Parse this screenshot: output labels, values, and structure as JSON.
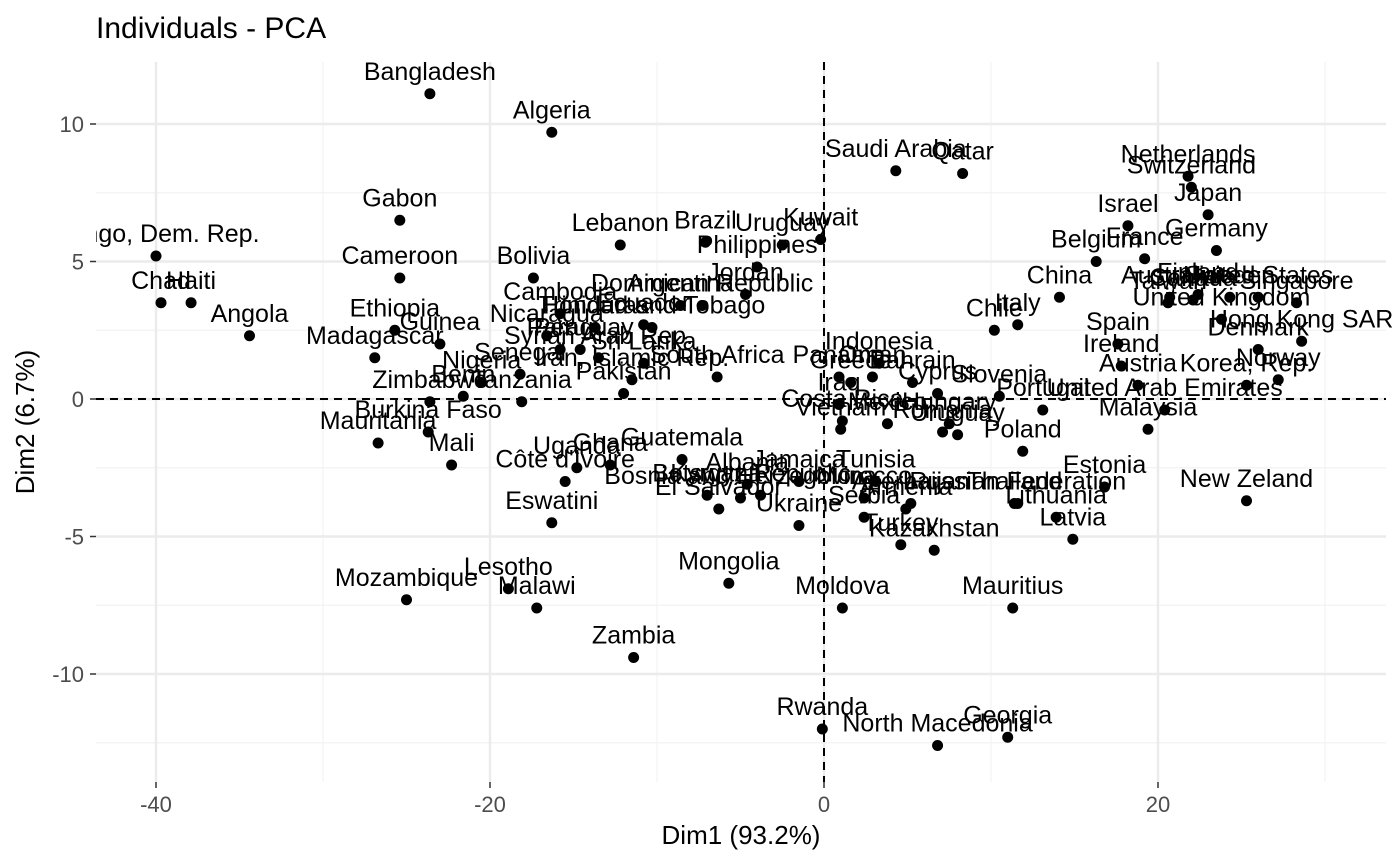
{
  "chart_data": {
    "type": "scatter",
    "title": "Individuals - PCA",
    "xlabel": "Dim1 (93.2%)",
    "ylabel": "Dim2 (6.7%)",
    "xlim": [
      -40,
      30
    ],
    "ylim": [
      -12.5,
      12
    ],
    "xticks": [
      -40,
      -20,
      0,
      20
    ],
    "yticks": [
      -10,
      -5,
      0,
      5,
      10
    ],
    "grid": true,
    "reference_lines": {
      "x": 0,
      "y": 0,
      "style": "dashed"
    },
    "points": [
      {
        "label": "Bangladesh",
        "x": -23.6,
        "y": 11.1
      },
      {
        "label": "Algeria",
        "x": -16.3,
        "y": 9.7
      },
      {
        "label": "Saudi Arabia",
        "x": 4.3,
        "y": 8.3
      },
      {
        "label": "Qatar",
        "x": 8.3,
        "y": 8.2
      },
      {
        "label": "Netherlands",
        "x": 21.8,
        "y": 8.1
      },
      {
        "label": "Switzerland",
        "x": 22.0,
        "y": 7.7
      },
      {
        "label": "Japan",
        "x": 23.0,
        "y": 6.7
      },
      {
        "label": "Israel",
        "x": 18.2,
        "y": 6.3
      },
      {
        "label": "Germany",
        "x": 23.5,
        "y": 5.4
      },
      {
        "label": "Gabon",
        "x": -25.4,
        "y": 6.5
      },
      {
        "label": "Lebanon",
        "x": -12.2,
        "y": 5.6
      },
      {
        "label": "Brazil",
        "x": -7.1,
        "y": 5.7
      },
      {
        "label": "Kuwait",
        "x": -0.2,
        "y": 5.8
      },
      {
        "label": "Uruguay",
        "x": -2.5,
        "y": 5.6
      },
      {
        "label": "Philippines",
        "x": -4.0,
        "y": 4.8
      },
      {
        "label": "Belgium",
        "x": 16.3,
        "y": 5.0
      },
      {
        "label": "France",
        "x": 19.2,
        "y": 5.1
      },
      {
        "label": "Congo, Dem. Rep.",
        "x": -40.0,
        "y": 5.2
      },
      {
        "label": "Cameroon",
        "x": -25.4,
        "y": 4.4
      },
      {
        "label": "Bolivia",
        "x": -17.4,
        "y": 4.4
      },
      {
        "label": "Jordan",
        "x": -4.7,
        "y": 3.8
      },
      {
        "label": "Dominican Republic",
        "x": -7.3,
        "y": 3.4
      },
      {
        "label": "Argentina",
        "x": -8.6,
        "y": 3.4
      },
      {
        "label": "China",
        "x": 14.1,
        "y": 3.7
      },
      {
        "label": "Australia",
        "x": 20.7,
        "y": 3.7
      },
      {
        "label": "Finland",
        "x": 22.4,
        "y": 3.8
      },
      {
        "label": "Canada",
        "x": 22.1,
        "y": 3.6
      },
      {
        "label": "United States",
        "x": 26.0,
        "y": 3.7
      },
      {
        "label": "Taiwan",
        "x": 20.6,
        "y": 3.5
      },
      {
        "label": "Sweden",
        "x": 24.3,
        "y": 3.7
      },
      {
        "label": "Singapore",
        "x": 28.3,
        "y": 3.5
      },
      {
        "label": "Chad",
        "x": -39.7,
        "y": 3.5
      },
      {
        "label": "Haiti",
        "x": -37.9,
        "y": 3.5
      },
      {
        "label": "Angola",
        "x": -34.4,
        "y": 2.3
      },
      {
        "label": "Cambodia",
        "x": -15.8,
        "y": 3.1
      },
      {
        "label": "Ecuador",
        "x": -10.8,
        "y": 2.7
      },
      {
        "label": "Guinea",
        "x": -23.0,
        "y": 2.0
      },
      {
        "label": "Nicaragua",
        "x": -16.6,
        "y": 2.3
      },
      {
        "label": "Honduras",
        "x": -13.7,
        "y": 2.6
      },
      {
        "label": "Trinidad and Tobago",
        "x": -10.3,
        "y": 2.6
      },
      {
        "label": "Italy",
        "x": 11.6,
        "y": 2.7
      },
      {
        "label": "Chile",
        "x": 10.2,
        "y": 2.5
      },
      {
        "label": "Spain",
        "x": 17.6,
        "y": 2.0
      },
      {
        "label": "United Kingdom",
        "x": 23.8,
        "y": 2.9
      },
      {
        "label": "Hong Kong SAR",
        "x": 28.6,
        "y": 2.1
      },
      {
        "label": "Ethiopia",
        "x": -25.7,
        "y": 2.5
      },
      {
        "label": "Madagascar",
        "x": -26.9,
        "y": 1.5
      },
      {
        "label": "Paraguay",
        "x": -14.6,
        "y": 1.8
      },
      {
        "label": "Peru",
        "x": -15.8,
        "y": 1.8
      },
      {
        "label": "Syrian Arab Rep.",
        "x": -13.5,
        "y": 1.5
      },
      {
        "label": "Indonesia",
        "x": 3.3,
        "y": 1.3
      },
      {
        "label": "Ireland",
        "x": 17.8,
        "y": 1.2
      },
      {
        "label": "Austria",
        "x": 18.8,
        "y": 0.5
      },
      {
        "label": "Denmark",
        "x": 26.0,
        "y": 1.8
      },
      {
        "label": "Korea, Rep.",
        "x": 25.3,
        "y": 0.5
      },
      {
        "label": "Norway",
        "x": 27.2,
        "y": 0.7
      },
      {
        "label": "Nigeria",
        "x": -20.5,
        "y": 0.6
      },
      {
        "label": "Senegal",
        "x": -18.2,
        "y": 0.9
      },
      {
        "label": "Sri Lanka",
        "x": -10.8,
        "y": 1.3
      },
      {
        "label": "Iran, Islamic Rep.",
        "x": -11.5,
        "y": 0.7
      },
      {
        "label": "Benin",
        "x": -21.6,
        "y": 0.1
      },
      {
        "label": "Tanzania",
        "x": -18.1,
        "y": -0.1
      },
      {
        "label": "Zimbabwe",
        "x": -23.6,
        "y": -0.1
      },
      {
        "label": "Pakistan",
        "x": -12.0,
        "y": 0.2
      },
      {
        "label": "South Africa",
        "x": -6.4,
        "y": 0.8
      },
      {
        "label": "Panama",
        "x": 0.9,
        "y": 0.8
      },
      {
        "label": "Bahrain",
        "x": 5.3,
        "y": 0.6
      },
      {
        "label": "Oman",
        "x": 2.9,
        "y": 0.8
      },
      {
        "label": "Greece",
        "x": 1.6,
        "y": 0.6
      },
      {
        "label": "Cyprus",
        "x": 6.8,
        "y": 0.2
      },
      {
        "label": "Slovenia",
        "x": 10.5,
        "y": 0.1
      },
      {
        "label": "Portugal",
        "x": 13.1,
        "y": -0.4
      },
      {
        "label": "United Arab Emirates",
        "x": 20.4,
        "y": -0.4
      },
      {
        "label": "Malaysia",
        "x": 19.4,
        "y": -1.1
      },
      {
        "label": "Iraq",
        "x": 0.9,
        "y": -0.2
      },
      {
        "label": "Costa Rica",
        "x": 1.1,
        "y": -0.8
      },
      {
        "label": "Vietnam",
        "x": 1.0,
        "y": -1.1
      },
      {
        "label": "Mexico",
        "x": 3.8,
        "y": -0.9
      },
      {
        "label": "Romania",
        "x": 7.1,
        "y": -1.2
      },
      {
        "label": "Hungary",
        "x": 7.5,
        "y": -0.9
      },
      {
        "label": "Uruguay2",
        "x": 8.0,
        "y": -1.3
      },
      {
        "label": "Poland",
        "x": 11.9,
        "y": -1.9
      },
      {
        "label": "Burkina Faso",
        "x": -23.7,
        "y": -1.2
      },
      {
        "label": "Mauritania",
        "x": -26.7,
        "y": -1.6
      },
      {
        "label": "Mali",
        "x": -22.3,
        "y": -2.4
      },
      {
        "label": "Uganda",
        "x": -14.8,
        "y": -2.5
      },
      {
        "label": "Ghana",
        "x": -12.8,
        "y": -2.4
      },
      {
        "label": "Guatemala",
        "x": -8.5,
        "y": -2.2
      },
      {
        "label": "Côte d'Ivoire",
        "x": -15.5,
        "y": -3.0
      },
      {
        "label": "Albania",
        "x": -4.6,
        "y": -3.1
      },
      {
        "label": "Bosnia and Herzegovina",
        "x": -5.0,
        "y": -3.6
      },
      {
        "label": "Botswana",
        "x": -7.0,
        "y": -3.5
      },
      {
        "label": "Jamaica",
        "x": -1.5,
        "y": -3.0
      },
      {
        "label": "Kyrgyz Republic",
        "x": -3.8,
        "y": -3.5
      },
      {
        "label": "El Salvador",
        "x": -6.3,
        "y": -4.0
      },
      {
        "label": "Ukraine",
        "x": -1.5,
        "y": -4.6
      },
      {
        "label": "Morocco",
        "x": 2.4,
        "y": -3.6
      },
      {
        "label": "Tunisia",
        "x": 3.1,
        "y": -3.0
      },
      {
        "label": "Azerbaijan",
        "x": 5.2,
        "y": -3.8
      },
      {
        "label": "Armenia",
        "x": 4.9,
        "y": -4.0
      },
      {
        "label": "Russian Federation",
        "x": 11.6,
        "y": -3.8
      },
      {
        "label": "Thailand",
        "x": 11.4,
        "y": -3.8
      },
      {
        "label": "Estonia",
        "x": 16.8,
        "y": -3.2
      },
      {
        "label": "New Zeland",
        "x": 25.3,
        "y": -3.7
      },
      {
        "label": "Eswatini",
        "x": -16.3,
        "y": -4.5
      },
      {
        "label": "Serbia",
        "x": 2.4,
        "y": -4.3
      },
      {
        "label": "Turkey",
        "x": 4.6,
        "y": -5.3
      },
      {
        "label": "Lithuania",
        "x": 13.9,
        "y": -4.3
      },
      {
        "label": "Latvia",
        "x": 14.9,
        "y": -5.1
      },
      {
        "label": "Kazakhstan",
        "x": 6.6,
        "y": -5.5
      },
      {
        "label": "Mongolia",
        "x": -5.7,
        "y": -6.7
      },
      {
        "label": "Moldova",
        "x": 1.1,
        "y": -7.6
      },
      {
        "label": "Mauritius",
        "x": 11.3,
        "y": -7.6
      },
      {
        "label": "Mozambique",
        "x": -25.0,
        "y": -7.3
      },
      {
        "label": "Lesotho",
        "x": -18.9,
        "y": -6.9
      },
      {
        "label": "Malawi",
        "x": -17.2,
        "y": -7.6
      },
      {
        "label": "Zambia",
        "x": -11.4,
        "y": -9.4
      },
      {
        "label": "Rwanda",
        "x": -0.1,
        "y": -12.0
      },
      {
        "label": "North Macedonia",
        "x": 6.8,
        "y": -12.6
      },
      {
        "label": "Georgia",
        "x": 11.0,
        "y": -12.3
      }
    ]
  }
}
